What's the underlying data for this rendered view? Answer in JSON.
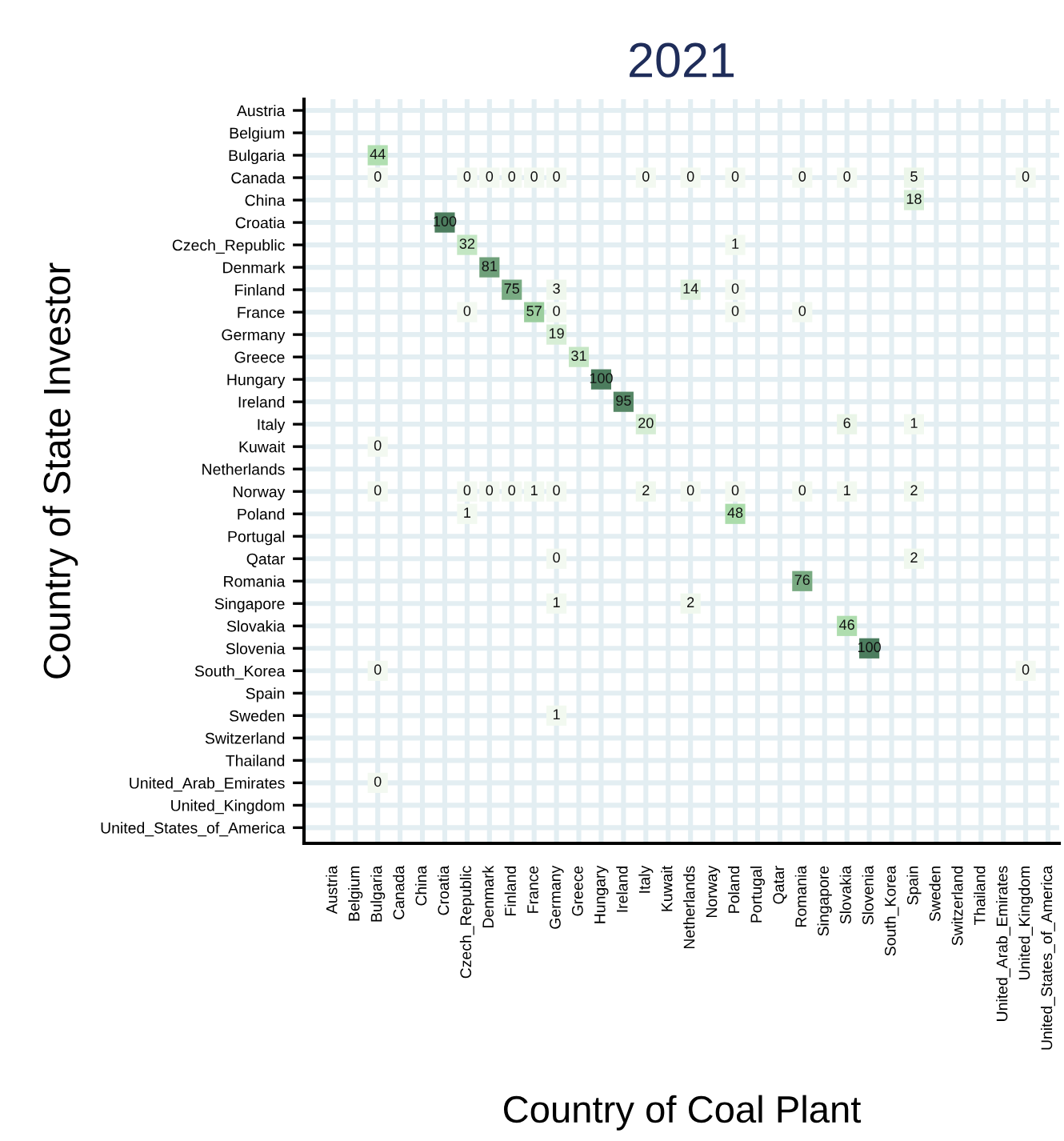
{
  "chart_data": {
    "type": "heatmap",
    "title": "2021",
    "xlabel": "Country of Coal Plant",
    "ylabel": "Country of State Investor",
    "categories": [
      "Austria",
      "Belgium",
      "Bulgaria",
      "Canada",
      "China",
      "Croatia",
      "Czech_Republic",
      "Denmark",
      "Finland",
      "France",
      "Germany",
      "Greece",
      "Hungary",
      "Ireland",
      "Italy",
      "Kuwait",
      "Netherlands",
      "Norway",
      "Poland",
      "Portugal",
      "Qatar",
      "Romania",
      "Singapore",
      "Slovakia",
      "Slovenia",
      "South_Korea",
      "Spain",
      "Sweden",
      "Switzerland",
      "Thailand",
      "United_Arab_Emirates",
      "United_Kingdom",
      "United_States_of_America"
    ],
    "y_categories": [
      "Austria",
      "Belgium",
      "Bulgaria",
      "Canada",
      "China",
      "Croatia",
      "Czech_Republic",
      "Denmark",
      "Finland",
      "France",
      "Germany",
      "Greece",
      "Hungary",
      "Ireland",
      "Italy",
      "Kuwait",
      "Netherlands",
      "Norway",
      "Poland",
      "Portugal",
      "Qatar",
      "Romania",
      "Singapore",
      "Slovakia",
      "Slovenia",
      "South_Korea",
      "Spain",
      "Sweden",
      "Switzerland",
      "Thailand",
      "United_Arab_Emirates",
      "United_Kingdom",
      "United_States_of_America"
    ],
    "cells": [
      [
        null,
        null,
        null,
        null,
        null,
        null,
        null,
        null,
        null,
        null,
        null,
        null,
        null,
        null,
        null,
        null,
        null,
        null,
        null,
        null,
        null,
        null,
        null,
        null,
        null,
        null,
        null,
        null,
        null,
        null,
        null,
        null,
        null
      ],
      [
        null,
        null,
        null,
        null,
        null,
        null,
        null,
        null,
        null,
        null,
        null,
        null,
        null,
        null,
        null,
        null,
        null,
        null,
        null,
        null,
        null,
        null,
        null,
        null,
        null,
        null,
        null,
        null,
        null,
        null,
        null,
        null,
        null
      ],
      [
        null,
        null,
        44,
        null,
        null,
        null,
        null,
        null,
        null,
        null,
        null,
        null,
        null,
        null,
        null,
        null,
        null,
        null,
        null,
        null,
        null,
        null,
        null,
        null,
        null,
        null,
        null,
        null,
        null,
        null,
        null,
        null,
        null
      ],
      [
        null,
        null,
        0,
        null,
        null,
        null,
        0,
        0,
        0,
        0,
        0,
        null,
        null,
        null,
        0,
        null,
        0,
        null,
        0,
        null,
        null,
        0,
        null,
        0,
        null,
        null,
        5,
        null,
        null,
        null,
        null,
        0,
        null
      ],
      [
        null,
        null,
        null,
        null,
        null,
        null,
        null,
        null,
        null,
        null,
        null,
        null,
        null,
        null,
        null,
        null,
        null,
        null,
        null,
        null,
        null,
        null,
        null,
        null,
        null,
        null,
        18,
        null,
        null,
        null,
        null,
        null,
        null
      ],
      [
        null,
        null,
        null,
        null,
        null,
        100,
        null,
        null,
        null,
        null,
        null,
        null,
        null,
        null,
        null,
        null,
        null,
        null,
        null,
        null,
        null,
        null,
        null,
        null,
        null,
        null,
        null,
        null,
        null,
        null,
        null,
        null,
        null
      ],
      [
        null,
        null,
        null,
        null,
        null,
        null,
        32,
        null,
        null,
        null,
        null,
        null,
        null,
        null,
        null,
        null,
        null,
        null,
        1,
        null,
        null,
        null,
        null,
        null,
        null,
        null,
        null,
        null,
        null,
        null,
        null,
        null,
        null
      ],
      [
        null,
        null,
        null,
        null,
        null,
        null,
        null,
        81,
        null,
        null,
        null,
        null,
        null,
        null,
        null,
        null,
        null,
        null,
        null,
        null,
        null,
        null,
        null,
        null,
        null,
        null,
        null,
        null,
        null,
        null,
        null,
        null,
        null
      ],
      [
        null,
        null,
        null,
        null,
        null,
        null,
        null,
        null,
        75,
        null,
        3,
        null,
        null,
        null,
        null,
        null,
        14,
        null,
        0,
        null,
        null,
        null,
        null,
        null,
        null,
        null,
        null,
        null,
        null,
        null,
        null,
        null,
        null
      ],
      [
        null,
        null,
        null,
        null,
        null,
        null,
        0,
        null,
        null,
        57,
        0,
        null,
        null,
        null,
        null,
        null,
        null,
        null,
        0,
        null,
        null,
        0,
        null,
        null,
        null,
        null,
        null,
        null,
        null,
        null,
        null,
        null,
        null
      ],
      [
        null,
        null,
        null,
        null,
        null,
        null,
        null,
        null,
        null,
        null,
        19,
        null,
        null,
        null,
        null,
        null,
        null,
        null,
        null,
        null,
        null,
        null,
        null,
        null,
        null,
        null,
        null,
        null,
        null,
        null,
        null,
        null,
        null
      ],
      [
        null,
        null,
        null,
        null,
        null,
        null,
        null,
        null,
        null,
        null,
        null,
        31,
        null,
        null,
        null,
        null,
        null,
        null,
        null,
        null,
        null,
        null,
        null,
        null,
        null,
        null,
        null,
        null,
        null,
        null,
        null,
        null,
        null
      ],
      [
        null,
        null,
        null,
        null,
        null,
        null,
        null,
        null,
        null,
        null,
        null,
        null,
        100,
        null,
        null,
        null,
        null,
        null,
        null,
        null,
        null,
        null,
        null,
        null,
        null,
        null,
        null,
        null,
        null,
        null,
        null,
        null,
        null
      ],
      [
        null,
        null,
        null,
        null,
        null,
        null,
        null,
        null,
        null,
        null,
        null,
        null,
        null,
        95,
        null,
        null,
        null,
        null,
        null,
        null,
        null,
        null,
        null,
        null,
        null,
        null,
        null,
        null,
        null,
        null,
        null,
        null,
        null
      ],
      [
        null,
        null,
        null,
        null,
        null,
        null,
        null,
        null,
        null,
        null,
        null,
        null,
        null,
        null,
        20,
        null,
        null,
        null,
        null,
        null,
        null,
        null,
        null,
        6,
        null,
        null,
        1,
        null,
        null,
        null,
        null,
        null,
        null
      ],
      [
        null,
        null,
        0,
        null,
        null,
        null,
        null,
        null,
        null,
        null,
        null,
        null,
        null,
        null,
        null,
        null,
        null,
        null,
        null,
        null,
        null,
        null,
        null,
        null,
        null,
        null,
        null,
        null,
        null,
        null,
        null,
        null,
        null
      ],
      [
        null,
        null,
        null,
        null,
        null,
        null,
        null,
        null,
        null,
        null,
        null,
        null,
        null,
        null,
        null,
        null,
        null,
        null,
        null,
        null,
        null,
        null,
        null,
        null,
        null,
        null,
        null,
        null,
        null,
        null,
        null,
        null,
        null
      ],
      [
        null,
        null,
        0,
        null,
        null,
        null,
        0,
        0,
        0,
        1,
        0,
        null,
        null,
        null,
        2,
        null,
        0,
        null,
        0,
        null,
        null,
        0,
        null,
        1,
        null,
        null,
        2,
        null,
        null,
        null,
        null,
        null,
        null
      ],
      [
        null,
        null,
        null,
        null,
        null,
        null,
        1,
        null,
        null,
        null,
        null,
        null,
        null,
        null,
        null,
        null,
        null,
        null,
        48,
        null,
        null,
        null,
        null,
        null,
        null,
        null,
        null,
        null,
        null,
        null,
        null,
        null,
        null
      ],
      [
        null,
        null,
        null,
        null,
        null,
        null,
        null,
        null,
        null,
        null,
        null,
        null,
        null,
        null,
        null,
        null,
        null,
        null,
        null,
        null,
        null,
        null,
        null,
        null,
        null,
        null,
        null,
        null,
        null,
        null,
        null,
        null,
        null
      ],
      [
        null,
        null,
        null,
        null,
        null,
        null,
        null,
        null,
        null,
        null,
        0,
        null,
        null,
        null,
        null,
        null,
        null,
        null,
        null,
        null,
        null,
        null,
        null,
        null,
        null,
        null,
        2,
        null,
        null,
        null,
        null,
        null,
        null
      ],
      [
        null,
        null,
        null,
        null,
        null,
        null,
        null,
        null,
        null,
        null,
        null,
        null,
        null,
        null,
        null,
        null,
        null,
        null,
        null,
        null,
        null,
        76,
        null,
        null,
        null,
        null,
        null,
        null,
        null,
        null,
        null,
        null,
        null
      ],
      [
        null,
        null,
        null,
        null,
        null,
        null,
        null,
        null,
        null,
        null,
        1,
        null,
        null,
        null,
        null,
        null,
        2,
        null,
        null,
        null,
        null,
        null,
        null,
        null,
        null,
        null,
        null,
        null,
        null,
        null,
        null,
        null,
        null
      ],
      [
        null,
        null,
        null,
        null,
        null,
        null,
        null,
        null,
        null,
        null,
        null,
        null,
        null,
        null,
        null,
        null,
        null,
        null,
        null,
        null,
        null,
        null,
        null,
        46,
        null,
        null,
        null,
        null,
        null,
        null,
        null,
        null,
        null
      ],
      [
        null,
        null,
        null,
        null,
        null,
        null,
        null,
        null,
        null,
        null,
        null,
        null,
        null,
        null,
        null,
        null,
        null,
        null,
        null,
        null,
        null,
        null,
        null,
        null,
        100,
        null,
        null,
        null,
        null,
        null,
        null,
        null,
        null
      ],
      [
        null,
        null,
        0,
        null,
        null,
        null,
        null,
        null,
        null,
        null,
        null,
        null,
        null,
        null,
        null,
        null,
        null,
        null,
        null,
        null,
        null,
        null,
        null,
        null,
        null,
        null,
        null,
        null,
        null,
        null,
        null,
        0,
        null
      ],
      [
        null,
        null,
        null,
        null,
        null,
        null,
        null,
        null,
        null,
        null,
        null,
        null,
        null,
        null,
        null,
        null,
        null,
        null,
        null,
        null,
        null,
        null,
        null,
        null,
        null,
        null,
        null,
        null,
        null,
        null,
        null,
        null,
        null
      ],
      [
        null,
        null,
        null,
        null,
        null,
        null,
        null,
        null,
        null,
        null,
        1,
        null,
        null,
        null,
        null,
        null,
        null,
        null,
        null,
        null,
        null,
        null,
        null,
        null,
        null,
        null,
        null,
        null,
        null,
        null,
        null,
        null,
        null
      ],
      [
        null,
        null,
        null,
        null,
        null,
        null,
        null,
        null,
        null,
        null,
        null,
        null,
        null,
        null,
        null,
        null,
        null,
        null,
        null,
        null,
        null,
        null,
        null,
        null,
        null,
        null,
        null,
        null,
        null,
        null,
        null,
        null,
        null
      ],
      [
        null,
        null,
        null,
        null,
        null,
        null,
        null,
        null,
        null,
        null,
        null,
        null,
        null,
        null,
        null,
        null,
        null,
        null,
        null,
        null,
        null,
        null,
        null,
        null,
        null,
        null,
        null,
        null,
        null,
        null,
        null,
        null,
        null
      ],
      [
        null,
        null,
        0,
        null,
        null,
        null,
        null,
        null,
        null,
        null,
        null,
        null,
        null,
        null,
        null,
        null,
        null,
        null,
        null,
        null,
        null,
        null,
        null,
        null,
        null,
        null,
        null,
        null,
        null,
        null,
        null,
        null,
        null
      ],
      [
        null,
        null,
        null,
        null,
        null,
        null,
        null,
        null,
        null,
        null,
        null,
        null,
        null,
        null,
        null,
        null,
        null,
        null,
        null,
        null,
        null,
        null,
        null,
        null,
        null,
        null,
        null,
        null,
        null,
        null,
        null,
        null,
        null
      ],
      [
        null,
        null,
        null,
        null,
        null,
        null,
        null,
        null,
        null,
        null,
        null,
        null,
        null,
        null,
        null,
        null,
        null,
        null,
        null,
        null,
        null,
        null,
        null,
        null,
        null,
        null,
        null,
        null,
        null,
        null,
        null,
        null,
        null
      ]
    ],
    "data_labels": true,
    "grid": true
  }
}
